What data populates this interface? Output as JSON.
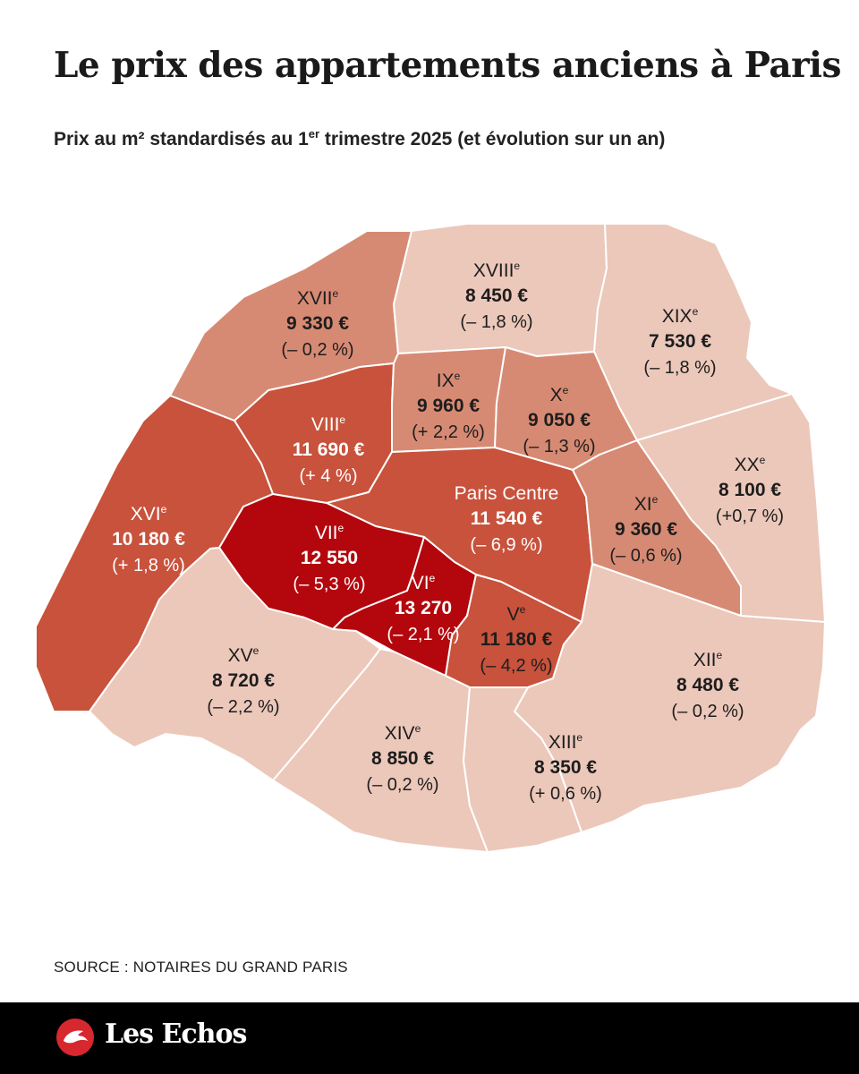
{
  "title": "Le prix des appartements anciens à Paris",
  "subtitle": {
    "before": "Prix au m² standardisés au 1",
    "sup": "er",
    "after": " trimestre 2025 (et évolution sur un an)"
  },
  "map": {
    "arrondissements": [
      {
        "id": "xvii",
        "name": "XVII",
        "sup": "e",
        "price": "9 330 €",
        "change": "(– 0,2 %)",
        "fill": "#d78a73"
      },
      {
        "id": "xviii",
        "name": "XVIII",
        "sup": "e",
        "price": "8 450 €",
        "change": "(– 1,8 %)",
        "fill": "#ecc8ba"
      },
      {
        "id": "xix",
        "name": "XIX",
        "sup": "e",
        "price": "7 530 €",
        "change": "(– 1,8 %)",
        "fill": "#ecc8ba"
      },
      {
        "id": "viii",
        "name": "VIII",
        "sup": "e",
        "price": "11 690 €",
        "change": "(+ 4 %)",
        "fill": "#c8523c"
      },
      {
        "id": "ix",
        "name": "IX",
        "sup": "e",
        "price": "9 960 €",
        "change": "(+ 2,2 %)",
        "fill": "#d78a73"
      },
      {
        "id": "x",
        "name": "X",
        "sup": "e",
        "price": "9 050 €",
        "change": "(– 1,3 %)",
        "fill": "#d78a73"
      },
      {
        "id": "xvi",
        "name": "XVI",
        "sup": "e",
        "price": "10 180 €",
        "change": "(+ 1,8 %)",
        "fill": "#c8523c"
      },
      {
        "id": "centre",
        "name": "Paris Centre",
        "sup": "",
        "price": "11 540 €",
        "change": "(– 6,9 %)",
        "fill": "#c8523c"
      },
      {
        "id": "xi",
        "name": "XI",
        "sup": "e",
        "price": "9 360 €",
        "change": "(– 0,6 %)",
        "fill": "#d78a73"
      },
      {
        "id": "xx",
        "name": "XX",
        "sup": "e",
        "price": "8 100 €",
        "change": "(+0,7 %)",
        "fill": "#ecc8ba"
      },
      {
        "id": "vii",
        "name": "VII",
        "sup": "e",
        "price": "12 550",
        "change": "(– 5,3 %)",
        "fill": "#b3070d"
      },
      {
        "id": "vi",
        "name": "VI",
        "sup": "e",
        "price": "13 270",
        "change": "(– 2,1 %)",
        "fill": "#b3070d"
      },
      {
        "id": "v",
        "name": "V",
        "sup": "e",
        "price": "11 180 €",
        "change": "(– 4,2 %)",
        "fill": "#c8523c"
      },
      {
        "id": "xv",
        "name": "XV",
        "sup": "e",
        "price": "8 720 €",
        "change": "(– 2,2 %)",
        "fill": "#ecc8ba"
      },
      {
        "id": "xii",
        "name": "XII",
        "sup": "e",
        "price": "8 480 €",
        "change": "(– 0,2 %)",
        "fill": "#ecc8ba"
      },
      {
        "id": "xiv",
        "name": "XIV",
        "sup": "e",
        "price": "8 850 €",
        "change": "(– 0,2 %)",
        "fill": "#ecc8ba"
      },
      {
        "id": "xiii",
        "name": "XIII",
        "sup": "e",
        "price": "8 350 €",
        "change": "(+ 0,6 %)",
        "fill": "#ecc8ba"
      }
    ]
  },
  "source": "SOURCE : NOTAIRES DU GRAND PARIS",
  "footer": {
    "brand": "Les Echos",
    "logo_icon": "les-echos-logo-icon"
  }
}
